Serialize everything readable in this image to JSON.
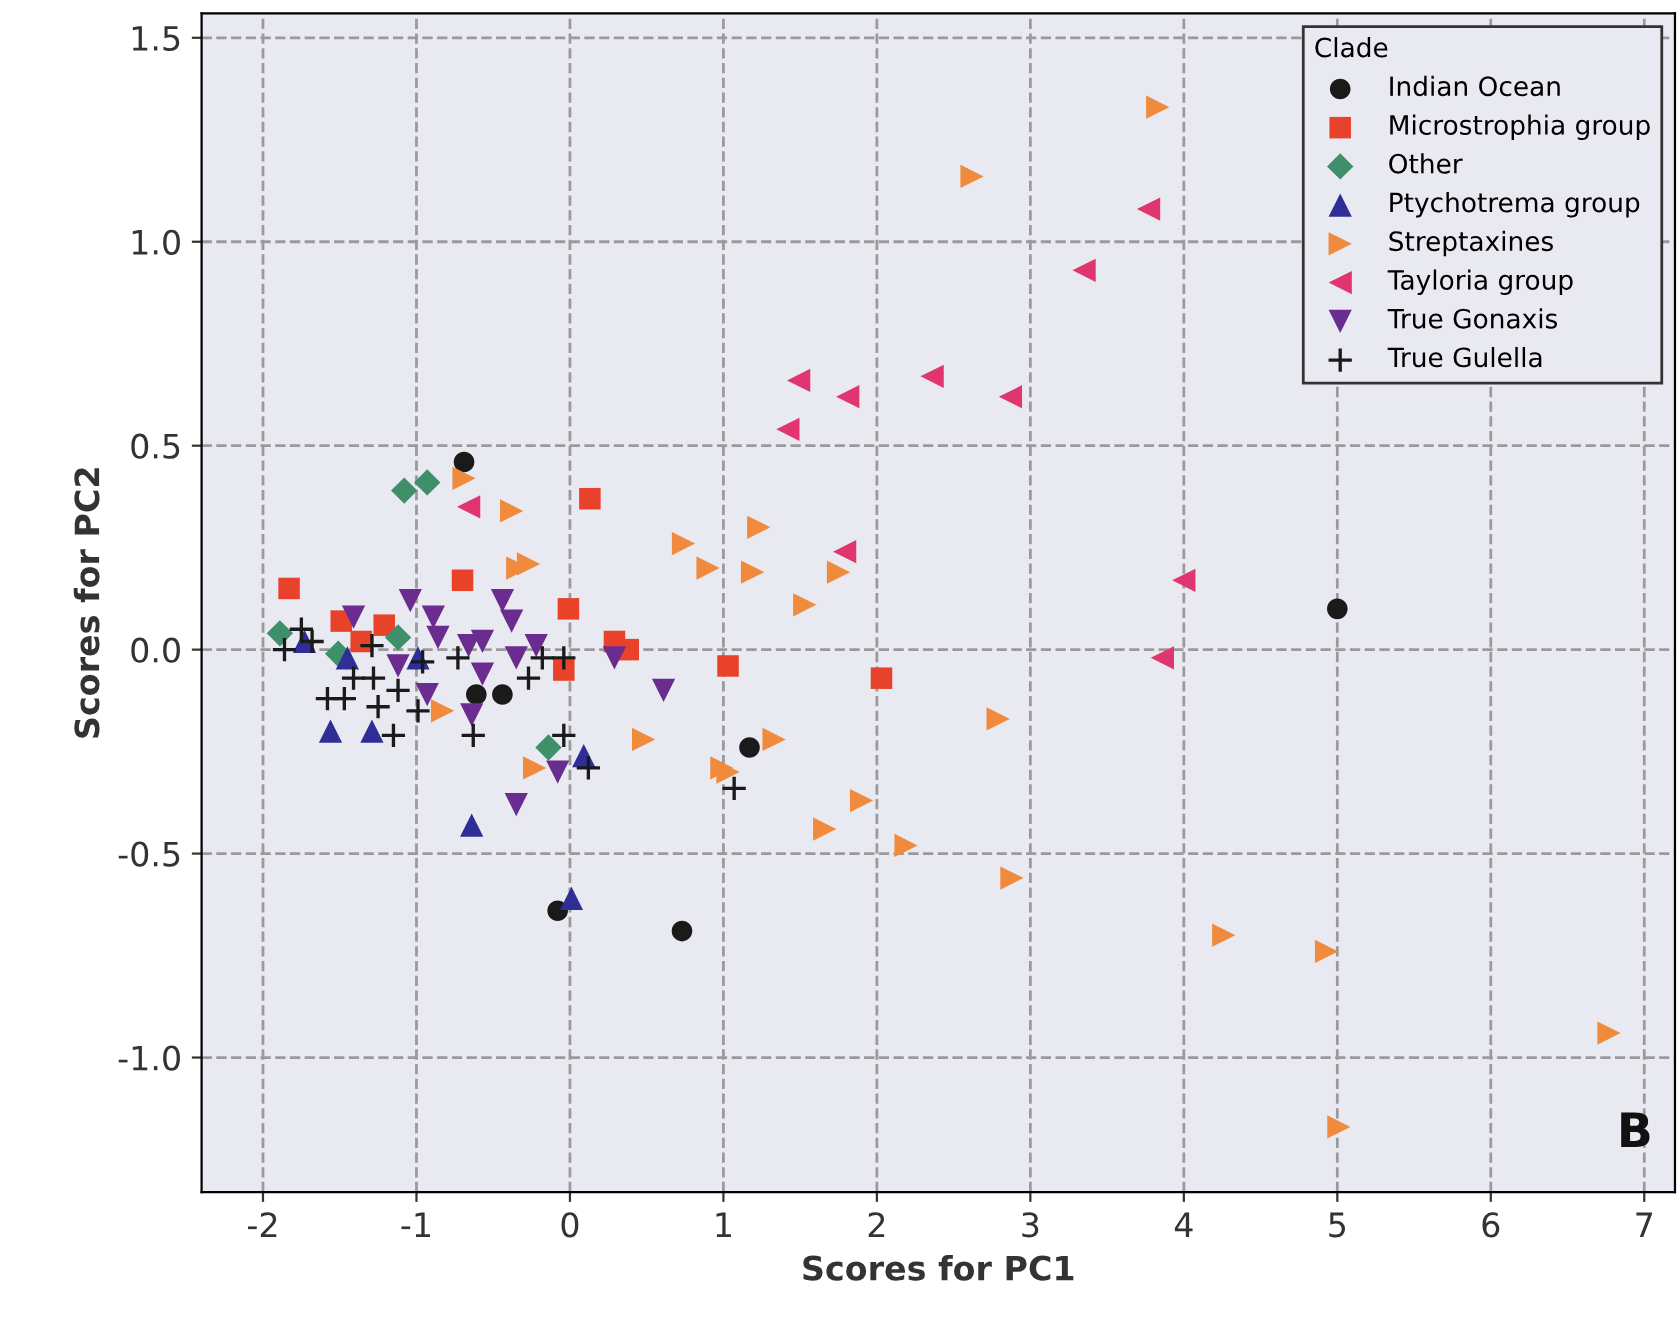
{
  "chart_data": {
    "type": "scatter",
    "xlabel": "Scores for PC1",
    "ylabel": "Scores for PC2",
    "legend_title": "Clade",
    "legend": "top right",
    "grid": true,
    "line_style": "dashed",
    "xlim": [
      -2.4,
      7.2
    ],
    "ylim": [
      -1.33,
      1.56
    ],
    "xticks": [
      -2,
      -1,
      0,
      1,
      2,
      3,
      4,
      5,
      6,
      7
    ],
    "yticks": [
      {
        "value": -1.0,
        "label": "-1.0"
      },
      {
        "value": -0.5,
        "label": "-0.5"
      },
      {
        "value": 0,
        "label": "0.0"
      },
      {
        "value": 0.5,
        "label": "0.5"
      },
      {
        "value": 1.0,
        "label": "1.0"
      },
      {
        "value": 1.5,
        "label": "1.5"
      }
    ],
    "annotations": [
      "B"
    ],
    "series": [
      {
        "name": "Indian Ocean",
        "color": "#1a1a1a",
        "marker": "circle",
        "x": [
          -0.69,
          -0.61,
          -0.44,
          -0.08,
          0.73,
          1.17,
          5.0
        ],
        "values": [
          0.46,
          -0.11,
          -0.11,
          -0.64,
          -0.69,
          -0.24,
          0.1
        ]
      },
      {
        "name": "Microstrophia group",
        "color": "#e8432a",
        "marker": "square",
        "x": [
          -1.83,
          -0.7,
          0.13,
          -1.49,
          -1.21,
          -1.36,
          -0.01,
          0.29,
          0.38,
          -0.04,
          1.03,
          2.03
        ],
        "values": [
          0.15,
          0.17,
          0.37,
          0.07,
          0.06,
          0.02,
          0.1,
          0.02,
          0.0,
          -0.05,
          -0.04,
          -0.07
        ]
      },
      {
        "name": "Other",
        "color": "#3f8f6a",
        "marker": "diamond",
        "x": [
          -1.08,
          -0.93,
          -1.89,
          -1.12,
          -0.14,
          -1.51
        ],
        "values": [
          0.39,
          0.41,
          0.04,
          0.03,
          -0.24,
          -0.01
        ]
      },
      {
        "name": "Ptychotrema group",
        "color": "#2e2e96",
        "marker": "triangle",
        "x": [
          -1.56,
          -1.29,
          0.09,
          -0.64,
          0.01,
          -1.73,
          -1.45,
          -0.99
        ],
        "values": [
          -0.2,
          -0.2,
          -0.26,
          -0.43,
          -0.61,
          0.02,
          -0.02,
          -0.02
        ]
      },
      {
        "name": "Streptaxines",
        "color": "#f08a3c",
        "marker": "triangle-right",
        "x": [
          3.83,
          2.62,
          -0.69,
          -0.38,
          -0.34,
          -0.27,
          0.74,
          0.9,
          -0.83,
          0.48,
          -0.23,
          0.99,
          1.23,
          1.19,
          1.53,
          1.75,
          1.33,
          1.03,
          1.9,
          1.66,
          2.19,
          2.79,
          2.88,
          4.26,
          4.93,
          5.01,
          6.77
        ],
        "values": [
          1.33,
          1.16,
          0.42,
          0.34,
          0.2,
          0.21,
          0.26,
          0.2,
          -0.15,
          -0.22,
          -0.29,
          -0.29,
          0.3,
          0.19,
          0.11,
          0.19,
          -0.22,
          -0.3,
          -0.37,
          -0.44,
          -0.48,
          -0.17,
          -0.56,
          -0.7,
          -0.74,
          -1.17,
          -0.94
        ]
      },
      {
        "name": "Tayloria group",
        "color": "#e0356e",
        "marker": "triangle-left",
        "x": [
          3.77,
          3.35,
          2.36,
          1.81,
          2.87,
          1.49,
          1.42,
          1.79,
          4.0,
          3.86,
          -0.66
        ],
        "values": [
          1.08,
          0.93,
          0.67,
          0.62,
          0.62,
          0.66,
          0.54,
          0.24,
          0.17,
          -0.02,
          0.35
        ]
      },
      {
        "name": "True Gonaxis",
        "color": "#6a2d8f",
        "marker": "triangle-down",
        "x": [
          -1.04,
          -1.41,
          -0.89,
          -0.44,
          -0.38,
          -0.86,
          -0.66,
          -0.57,
          -0.22,
          -0.35,
          -0.57,
          0.29,
          0.61,
          -0.93,
          -0.64,
          -1.12,
          -0.35,
          -0.08
        ],
        "values": [
          0.12,
          0.08,
          0.08,
          0.12,
          0.07,
          0.03,
          0.01,
          0.02,
          0.01,
          -0.02,
          -0.06,
          -0.02,
          -0.1,
          -0.11,
          -0.16,
          -0.04,
          -0.38,
          -0.3
        ]
      },
      {
        "name": "True Gulella",
        "color": "#1a1a1a",
        "marker": "cross",
        "x": [
          -1.86,
          -1.75,
          -1.68,
          -1.58,
          -1.41,
          -1.28,
          -1.47,
          -1.25,
          -1.15,
          -1.12,
          -0.96,
          -0.99,
          -0.73,
          -0.63,
          -0.27,
          -0.18,
          -0.04,
          -0.04,
          0.12,
          1.07,
          -1.29
        ],
        "values": [
          0.0,
          0.05,
          0.02,
          -0.12,
          -0.07,
          -0.07,
          -0.12,
          -0.14,
          -0.21,
          -0.1,
          -0.03,
          -0.15,
          -0.02,
          -0.21,
          -0.07,
          -0.02,
          -0.02,
          -0.21,
          -0.29,
          -0.34,
          0.01
        ]
      }
    ]
  }
}
